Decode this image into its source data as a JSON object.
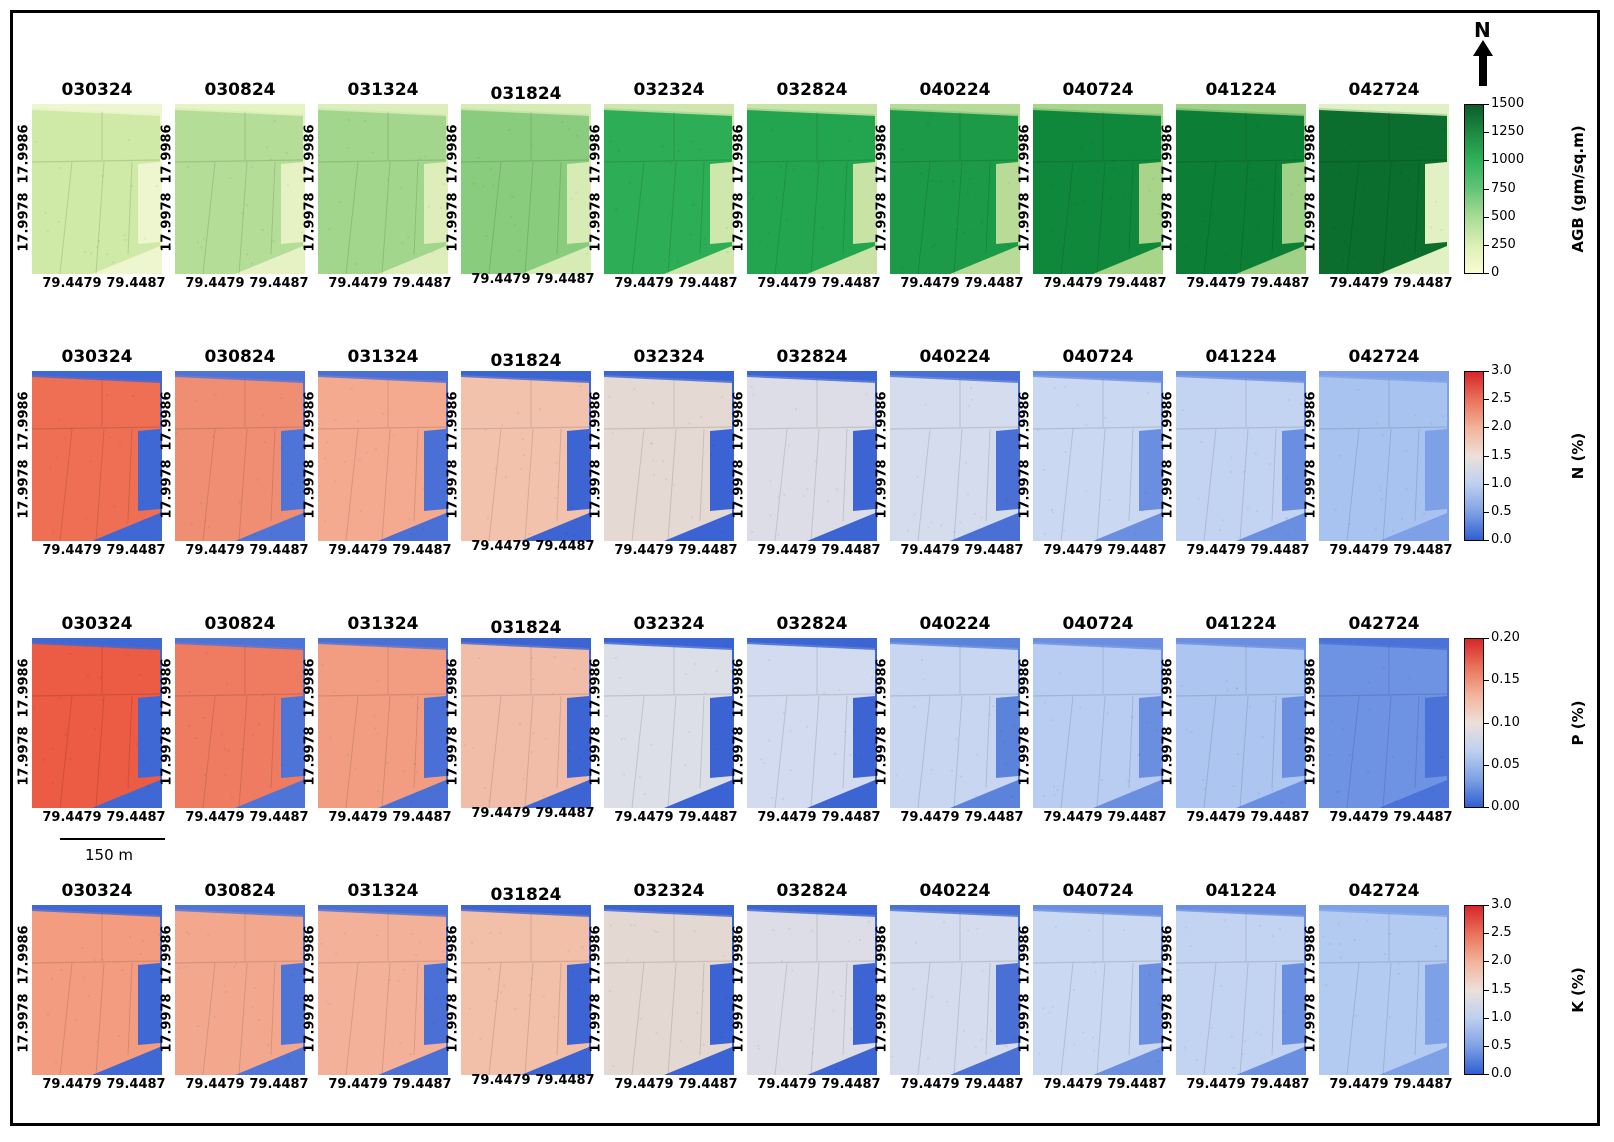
{
  "dates": [
    "030324",
    "030824",
    "031324",
    "031824",
    "032324",
    "032824",
    "040224",
    "040724",
    "041224",
    "042724"
  ],
  "y_ticks": [
    "17.9986",
    "17.9978"
  ],
  "x_ticks": [
    "79.4479",
    "79.4487"
  ],
  "rows": [
    {
      "id": "agb",
      "colorbar_label": "AGB (gm/sq.m)",
      "colorbar_ticks": [
        "1500",
        "1250",
        "1000",
        "750",
        "500",
        "250",
        "0"
      ],
      "colorbar_colors": [
        "#0a5c2b",
        "#1e8a43",
        "#2fb25a",
        "#63c476",
        "#a8dc95",
        "#dcefb5",
        "#fafcd4"
      ],
      "map_colors": [
        "#cfe9a6",
        "#b4dd98",
        "#a1d68c",
        "#89cc7e",
        "#2dad55",
        "#23a54f",
        "#1c9a47",
        "#10883b",
        "#0d7e36",
        "#0b6d2e"
      ],
      "bg_colors": [
        "#eef6cf",
        "#e6f2c3",
        "#ddeebb",
        "#d7ebb5",
        "#cfe6ad",
        "#c9e3a7",
        "#b8dc98",
        "#a9d58b",
        "#a0d186",
        "#e2f1c4"
      ]
    },
    {
      "id": "n",
      "colorbar_label": "N (%)",
      "colorbar_ticks": [
        "3.0",
        "2.5",
        "2.0",
        "1.5",
        "1.0",
        "0.5",
        "0.0"
      ],
      "colorbar_colors": [
        "#d7262b",
        "#e9735a",
        "#f3b39b",
        "#ece0da",
        "#bed0ef",
        "#7fa1e4",
        "#2f5fd1"
      ],
      "map_colors": [
        "#ee6f53",
        "#f08e73",
        "#f4aa8f",
        "#f3c2ad",
        "#e5d9d3",
        "#dcdde6",
        "#d4dcee",
        "#cbd8f2",
        "#c3d3f2",
        "#a9c3f0"
      ],
      "bg_colors": [
        "#3f68d4",
        "#4f74d7",
        "#4a70d6",
        "#3c64d3",
        "#3b63d3",
        "#3c64d3",
        "#4a70d6",
        "#6b8fe0",
        "#6b8fe0",
        "#7ea0e6"
      ]
    },
    {
      "id": "p",
      "colorbar_label": "P (%)",
      "colorbar_ticks": [
        "0.20",
        "0.15",
        "0.10",
        "0.05",
        "0.00"
      ],
      "colorbar_colors": [
        "#d7262b",
        "#e9735a",
        "#f3b39b",
        "#ece0da",
        "#bed0ef",
        "#7fa1e4",
        "#2f5fd1"
      ],
      "map_colors": [
        "#ec5b43",
        "#ef7b61",
        "#f29d82",
        "#f1bda8",
        "#dcdee8",
        "#d2dbef",
        "#c8d6f2",
        "#b9cdf2",
        "#adc5f1",
        "#6d93e2"
      ],
      "bg_colors": [
        "#3f68d4",
        "#4f74d7",
        "#4a70d6",
        "#3c64d3",
        "#3b63d3",
        "#3c64d3",
        "#5c83dc",
        "#6b8fe0",
        "#6b8fe0",
        "#4a72d8"
      ]
    },
    {
      "id": "k",
      "colorbar_label": "K (%)",
      "colorbar_ticks": [
        "3.0",
        "2.5",
        "2.0",
        "1.5",
        "1.0",
        "0.5",
        "0.0"
      ],
      "colorbar_colors": [
        "#d7262b",
        "#e9735a",
        "#f3b39b",
        "#ece0da",
        "#bed0ef",
        "#7fa1e4",
        "#2f5fd1"
      ],
      "map_colors": [
        "#f39c80",
        "#f3a88e",
        "#f3b19a",
        "#f2bfa8",
        "#e4d8d2",
        "#dcdde6",
        "#d4dcee",
        "#cbd8f2",
        "#c3d3f2",
        "#b3cbf1"
      ],
      "bg_colors": [
        "#3f68d4",
        "#4f74d7",
        "#4a70d6",
        "#3c64d3",
        "#3b63d3",
        "#3c64d3",
        "#4a70d6",
        "#6b8fe0",
        "#6b8fe0",
        "#7ea0e6"
      ]
    }
  ],
  "north_label": "N",
  "scale_bar": "150 m"
}
